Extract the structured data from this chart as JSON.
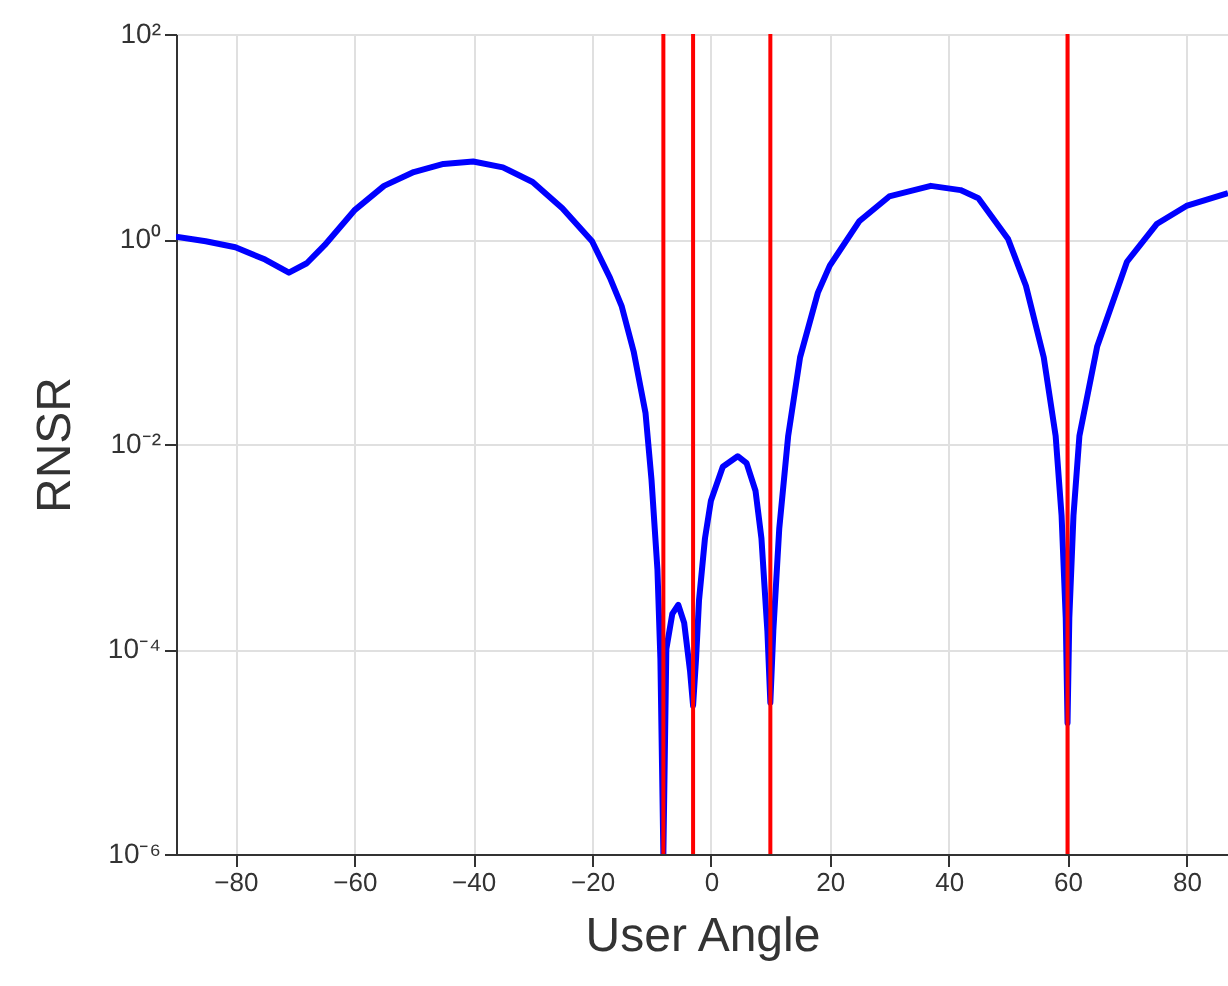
{
  "chart_data": {
    "type": "line",
    "xlabel": "User Angle",
    "ylabel": "RNSR",
    "x": [
      -90,
      -85,
      -80,
      -75,
      -71,
      -68,
      -65,
      -60,
      -55,
      -50,
      -45,
      -40,
      -35,
      -30,
      -25,
      -20,
      -17,
      -15,
      -13,
      -11,
      -10,
      -9,
      -8.5,
      -8,
      -7.5,
      -6.5,
      -5.5,
      -4.5,
      -3.5,
      -3,
      -2.5,
      -2,
      -1,
      0,
      2,
      4.5,
      6,
      7.5,
      8.5,
      9.5,
      10,
      10.5,
      11.5,
      13,
      15,
      18,
      20,
      25,
      30,
      37,
      42,
      45,
      50,
      53,
      56,
      58,
      59,
      59.7,
      60,
      60.3,
      61,
      62,
      65,
      70,
      75,
      80,
      87
    ],
    "series": [
      {
        "color": "#0000ff",
        "values": [
          1.05,
          0.95,
          0.83,
          0.63,
          0.47,
          0.58,
          0.87,
          1.9,
          3.3,
          4.5,
          5.4,
          5.7,
          5.0,
          3.6,
          2.0,
          0.95,
          0.42,
          0.22,
          0.08,
          0.02,
          0.0045,
          0.0006,
          8e-05,
          1e-06,
          0.0001,
          0.00022,
          0.00027,
          0.00018,
          6e-05,
          2.8e-05,
          8e-05,
          0.0003,
          0.0012,
          0.0028,
          0.006,
          0.0076,
          0.0065,
          0.0035,
          0.0012,
          0.00015,
          3e-05,
          0.00015,
          0.0015,
          0.012,
          0.07,
          0.3,
          0.55,
          1.5,
          2.6,
          3.3,
          3.0,
          2.5,
          1.0,
          0.35,
          0.07,
          0.012,
          0.002,
          0.0002,
          1.9e-05,
          0.0002,
          0.002,
          0.012,
          0.09,
          0.6,
          1.4,
          2.1,
          2.8
        ]
      }
    ],
    "log": "y",
    "xlim": [
      -90,
      87
    ],
    "ylim": [
      1e-06,
      100
    ],
    "xticks": [
      -80,
      -60,
      -40,
      -20,
      0,
      20,
      40,
      60,
      80
    ],
    "yticks": [
      {
        "value": 1e-06,
        "label": "10⁻⁶"
      },
      {
        "value": 0.0001,
        "label": "10⁻⁴"
      },
      {
        "value": 0.01,
        "label": "10⁻²"
      },
      {
        "value": 1,
        "label": "10⁰"
      },
      {
        "value": 100,
        "label": "10²"
      }
    ],
    "ref_lines": [
      {
        "axis": "x",
        "value": -8,
        "color": "#ff0000",
        "line_style": "solid"
      },
      {
        "axis": "x",
        "value": -3,
        "color": "#ff0000",
        "line_style": "solid"
      },
      {
        "axis": "x",
        "value": 10,
        "color": "#ff0000",
        "line_style": "solid"
      },
      {
        "axis": "x",
        "value": 60,
        "color": "#ff0000",
        "line_style": "solid"
      }
    ],
    "grid": true,
    "marker": "none",
    "line_style": "solid"
  }
}
